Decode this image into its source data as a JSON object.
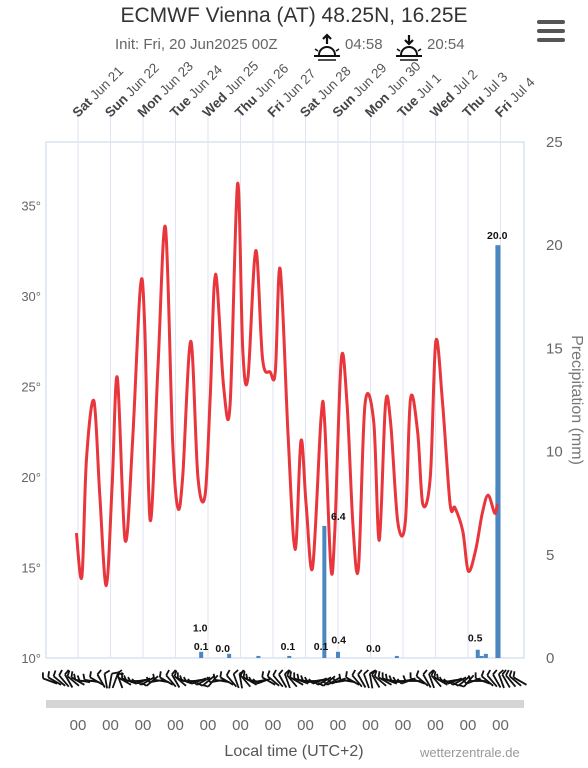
{
  "header": {
    "title": "ECMWF Vienna (AT) 48.25N, 16.25E",
    "init": "Init: Fri, 20 Jun2025 00Z",
    "sunrise": "04:58",
    "sunset": "20:54",
    "sunrise_icon": "sunrise-icon",
    "sunset_icon": "sunset-icon",
    "menu_icon": "hamburger-menu-icon"
  },
  "footer": {
    "xlabel": "Local time (UTC+2)",
    "credit": "wetterzentrale.de"
  },
  "chart_data": {
    "type": "line",
    "colors": {
      "temperature": "#e8363c",
      "precipitation": "#4a86c0",
      "grid": "#dde6f2"
    },
    "days": [
      {
        "dow": "Sat",
        "date": "Jun 21"
      },
      {
        "dow": "Sun",
        "date": "Jun 22"
      },
      {
        "dow": "Mon",
        "date": "Jun 23"
      },
      {
        "dow": "Tue",
        "date": "Jun 24"
      },
      {
        "dow": "Wed",
        "date": "Jun 25"
      },
      {
        "dow": "Thu",
        "date": "Jun 26"
      },
      {
        "dow": "Fri",
        "date": "Jun 27"
      },
      {
        "dow": "Sat",
        "date": "Jun 28"
      },
      {
        "dow": "Sun",
        "date": "Jun 29"
      },
      {
        "dow": "Mon",
        "date": "Jun 30"
      },
      {
        "dow": "Tue",
        "date": "Jul 1"
      },
      {
        "dow": "Wed",
        "date": "Jul 2"
      },
      {
        "dow": "Thu",
        "date": "Jul 3"
      },
      {
        "dow": "Fri",
        "date": "Jul 4"
      }
    ],
    "bottom_tick_labels": [
      "00",
      "00",
      "00",
      "00",
      "00",
      "00",
      "00",
      "00",
      "00",
      "00",
      "00",
      "00",
      "00",
      "00"
    ],
    "y_left": {
      "ticks": [
        "10°",
        "15°",
        "20°",
        "25°",
        "30°",
        "35°"
      ],
      "range": [
        10,
        38.5
      ]
    },
    "y_right": {
      "label": "Precipitation (mm)",
      "ticks": [
        "0",
        "5",
        "10",
        "15",
        "20",
        "25"
      ],
      "range": [
        0,
        25
      ]
    },
    "temperature": {
      "name": "Temperature",
      "x_day": [
        -0.05,
        0.12,
        0.26,
        0.49,
        0.67,
        0.87,
        1.05,
        1.21,
        1.45,
        1.68,
        1.92,
        2.05,
        2.22,
        2.46,
        2.69,
        2.91,
        3.07,
        3.22,
        3.47,
        3.69,
        3.91,
        4.07,
        4.23,
        4.48,
        4.68,
        4.91,
        5.07,
        5.23,
        5.47,
        5.68,
        5.91,
        6.07,
        6.22,
        6.46,
        6.68,
        6.86,
        7.02,
        7.22,
        7.48,
        7.59,
        7.78,
        7.9,
        8.1,
        8.28,
        8.46,
        8.63,
        8.83,
        9.1,
        9.27,
        9.46,
        9.62,
        9.84,
        10.07,
        10.23,
        10.45,
        10.61,
        10.84,
        11.01,
        11.22,
        11.45,
        11.6,
        11.84,
        12.01,
        12.24,
        12.44,
        12.62,
        12.82,
        12.9
      ],
      "temp_c": [
        16.9,
        14.5,
        21.0,
        24.2,
        19.0,
        14.0,
        19.5,
        25.5,
        16.5,
        22.0,
        30.5,
        28.5,
        17.6,
        26.0,
        33.8,
        22.0,
        18.3,
        20.0,
        27.5,
        20.0,
        19.0,
        24.5,
        31.2,
        25.0,
        24.0,
        36.2,
        27.0,
        25.5,
        32.5,
        26.5,
        25.8,
        25.8,
        31.5,
        22.5,
        16.0,
        22.0,
        18.5,
        15.0,
        23.3,
        23.0,
        15.0,
        17.0,
        26.5,
        24.0,
        17.3,
        15.0,
        24.0,
        23.0,
        16.5,
        24.0,
        23.0,
        17.5,
        17.5,
        24.3,
        22.5,
        18.5,
        20.0,
        27.5,
        24.0,
        18.5,
        18.3,
        17.0,
        14.8,
        16.0,
        18.0,
        19.0,
        18.0,
        18.5
      ]
    },
    "precipitation": {
      "name": "Precipitation",
      "x_day": [
        3.79,
        4.65,
        5.55,
        6.5,
        7.58,
        8.0,
        9.0,
        9.81,
        10.5,
        12.3,
        12.42,
        12.55,
        12.92
      ],
      "mm": [
        0.3,
        0.2,
        0.1,
        0.1,
        6.4,
        0.3,
        0.0,
        0.1,
        0.0,
        0.4,
        0.1,
        0.2,
        20.0
      ],
      "labels": [
        {
          "x_day": 3.76,
          "mm": 1.0,
          "text": "1.0"
        },
        {
          "x_day": 3.79,
          "mm": 0.1,
          "text": "0.1"
        },
        {
          "x_day": 4.45,
          "mm": 0.0,
          "text": "0.0"
        },
        {
          "x_day": 6.46,
          "mm": 0.1,
          "text": "0.1"
        },
        {
          "x_day": 7.48,
          "mm": 0.1,
          "text": "0.1"
        },
        {
          "x_day": 8.01,
          "mm": 6.4,
          "text": "6.4"
        },
        {
          "x_day": 8.02,
          "mm": 0.4,
          "text": "0.4"
        },
        {
          "x_day": 9.09,
          "mm": 0.0,
          "text": "0.0"
        },
        {
          "x_day": 12.22,
          "mm": 0.5,
          "text": "0.5"
        },
        {
          "x_day": 12.9,
          "mm": 20.0,
          "text": "20.0"
        }
      ]
    },
    "wind_directions_deg": [
      290,
      300,
      310,
      320,
      330,
      310,
      300,
      280,
      270,
      280,
      300,
      330,
      350,
      10,
      20,
      340,
      300,
      290,
      270,
      260,
      250,
      240,
      230,
      260,
      280,
      300,
      320,
      330,
      310,
      290,
      270,
      260,
      250,
      240,
      230,
      220,
      260,
      280,
      300,
      320,
      340,
      350,
      320,
      300,
      280,
      260,
      250,
      300,
      310,
      320,
      330,
      340,
      320,
      300,
      290,
      280,
      270,
      260,
      250,
      240,
      230,
      240,
      250,
      260,
      280,
      300,
      320,
      330,
      340,
      350,
      330,
      310,
      300,
      290,
      280,
      270,
      260,
      250,
      270,
      290,
      310,
      330,
      340,
      320,
      300,
      280,
      260,
      250,
      240,
      230,
      220,
      250,
      270,
      290,
      310,
      320,
      330,
      340,
      330,
      320,
      310,
      300
    ]
  }
}
